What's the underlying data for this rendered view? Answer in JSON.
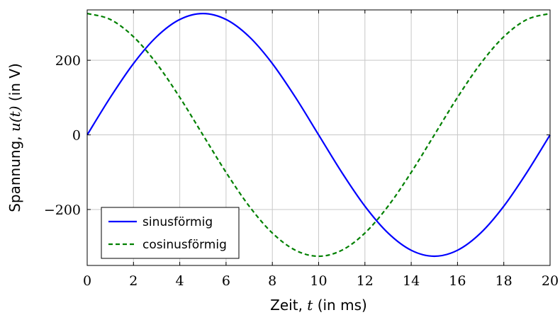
{
  "chart_data": {
    "type": "line",
    "title": "",
    "xlabel": {
      "prefix": "Zeit, ",
      "var": "t",
      "suffix": " (in ms)"
    },
    "ylabel": {
      "prefix": "Spannung, ",
      "var": "u(t)",
      "suffix": " (in V)"
    },
    "xlim": [
      0,
      20
    ],
    "ylim": [
      -350,
      335
    ],
    "xticks": [
      0,
      2,
      4,
      6,
      8,
      10,
      12,
      14,
      16,
      18,
      20
    ],
    "xtick_labels": [
      "0",
      "2",
      "4",
      "6",
      "8",
      "10",
      "12",
      "14",
      "16",
      "18",
      "20"
    ],
    "yticks": [
      -200,
      0,
      200
    ],
    "ytick_labels": [
      "−200",
      "0",
      "200"
    ],
    "grid": true,
    "legend_position": "bottom-left",
    "series": [
      {
        "name": "sinusförmig",
        "color": "#0000ff",
        "dash": "solid",
        "x": [
          0,
          1,
          2,
          3,
          4,
          5,
          6,
          7,
          8,
          9,
          10,
          11,
          12,
          13,
          14,
          15,
          16,
          17,
          18,
          19,
          20
        ],
        "y": [
          0,
          100.5,
          191.2,
          263.1,
          309.3,
          325.3,
          309.3,
          263.1,
          191.2,
          100.5,
          0,
          -100.5,
          -191.2,
          -263.1,
          -309.3,
          -325.3,
          -309.3,
          -263.1,
          -191.2,
          -100.5,
          0
        ]
      },
      {
        "name": "cosinusförmig",
        "color": "#008000",
        "dash": "dashed",
        "x": [
          0,
          1,
          2,
          3,
          4,
          5,
          6,
          7,
          8,
          9,
          10,
          11,
          12,
          13,
          14,
          15,
          16,
          17,
          18,
          19,
          20
        ],
        "y": [
          325.3,
          309.3,
          263.1,
          191.2,
          100.5,
          0,
          -100.5,
          -191.2,
          -263.1,
          -309.3,
          -325.3,
          -309.3,
          -263.1,
          -191.2,
          -100.5,
          0,
          100.5,
          191.2,
          263.1,
          309.3,
          325.3
        ]
      }
    ]
  }
}
